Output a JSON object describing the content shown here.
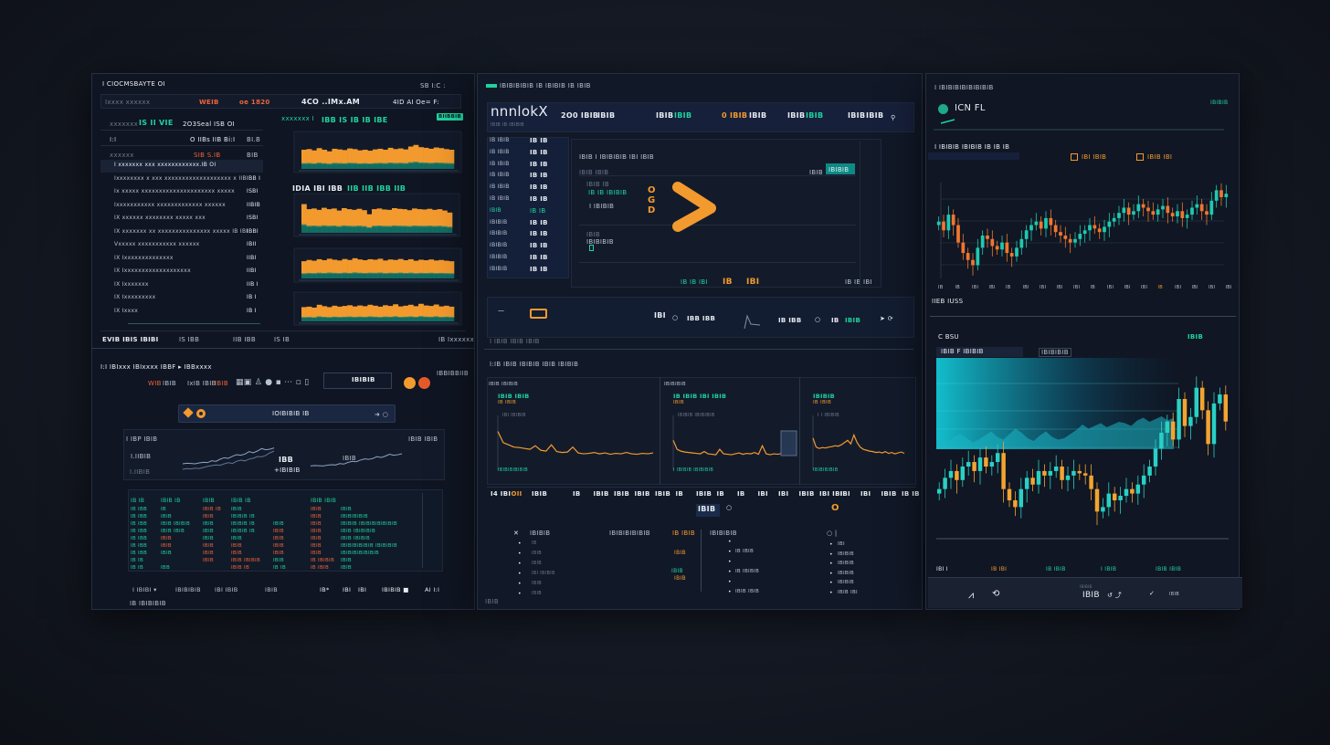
{
  "left_top": {
    "title": "I CIOCMSBAYTE  OI",
    "header_right": "SB  I:C  :",
    "toolbar": {
      "label": "Ixxxx xxxxxx",
      "a": "WEIB",
      "b": "oe 1820",
      "center": "4CO ..IMx.AM",
      "right": "4ID  AI  Oe= F:"
    },
    "summary": {
      "label": "xxxxxxx",
      "green": "IS II  VIE",
      "white": "2O3Seal  ISB OI"
    },
    "rows_head": [
      {
        "a": "I:I",
        "b": "O IIBs  IIB Bi:I",
        "c": "BI.B"
      },
      {
        "a": "xxxxxx",
        "b": "SIB  S.IB",
        "c": "BIB"
      }
    ],
    "list": [
      {
        "label": "I  xxxxxxx xxx xxxxxxxxxxxx.IB  OI",
        "value": ""
      },
      {
        "label": "Ixxxxxxxx x xxx xxxxxxxxxxxxxxxxxxx x IIB",
        "value": "IBB I"
      },
      {
        "label": "Ix xxxxx xxxxxxxxxxxxxxxxxxxxx xxxxx",
        "value": "ISBI"
      },
      {
        "label": "Ixxxxxxxxxxx xxxxxxxxxxxxx xxxxxx",
        "value": "IIBIB"
      },
      {
        "label": "IX xxxxxx xxxxxxxx xxxxx xxx",
        "value": "ISBI"
      },
      {
        "label": "IX xxxxxxx xx xxxxxxxxxxxxxxx xxxxx  IB IBI",
        "value": "IBBI"
      },
      {
        "label": "Vxxxxx xxxxxxxxxxx xxxxxx",
        "value": "IBII"
      },
      {
        "label": "IX Ixxxxxxxxxxxxxx",
        "value": "IIBI"
      },
      {
        "label": "IX Ixxxxxxxxxxxxxxxxxxx",
        "value": "IIBI"
      },
      {
        "label": "IX Ixxxxxxx",
        "value": "IIB I"
      },
      {
        "label": "IX Ixxxxxxxxx",
        "value": "IB I"
      },
      {
        "label": "IX Ixxxx",
        "value": "IB I"
      }
    ],
    "chart_labels": [
      {
        "a": "xxxxxxx I",
        "b": "IBB IS IB IB IBE",
        "badge": "BIIBBIB"
      },
      {
        "a": "IDIA  IBI IBB",
        "b": "IIB  IIB IBB IIB"
      }
    ],
    "waves": [
      [
        60,
        62,
        58,
        65,
        60,
        55,
        63,
        61,
        59,
        64,
        62,
        58,
        60,
        57,
        61,
        63,
        60,
        66,
        62,
        64,
        61,
        70,
        75,
        68,
        66,
        63,
        67,
        65,
        62,
        60
      ],
      [
        85,
        70,
        72,
        68,
        74,
        70,
        72,
        66,
        73,
        70,
        68,
        71,
        67,
        55,
        70,
        72,
        69,
        68,
        73,
        71,
        70,
        67,
        72,
        70,
        69,
        71,
        68,
        70,
        66,
        60
      ],
      [
        70,
        75,
        72,
        78,
        74,
        80,
        76,
        73,
        79,
        75,
        82,
        77,
        74,
        78,
        76,
        80,
        73,
        77,
        75,
        79,
        74,
        78,
        72,
        76,
        74,
        77,
        73,
        75,
        72,
        70
      ],
      [
        60,
        62,
        58,
        70,
        64,
        60,
        66,
        62,
        65,
        68,
        63,
        67,
        64,
        70,
        66,
        62,
        68,
        65,
        72,
        63,
        66,
        70,
        64,
        74,
        67,
        65,
        71,
        63,
        66,
        62
      ]
    ],
    "footer": {
      "a": "EVIB IBIS IBIBI",
      "b": "IS IBB",
      "c": "IIB  IBB",
      "d": "IS IB",
      "e": "IB Ixxxxxx"
    }
  },
  "left_bottom": {
    "title": "I:I IBIxxx IBIxxxx IBBF  ▸ IBBxxxx",
    "header_right": "IBBIBBIIB",
    "toolbar": [
      "WIB",
      "IBIB",
      "IxIB IBIB",
      "IBIB",
      "IBIB"
    ],
    "ticker": "IBIBIB",
    "search_value": "IOIBIBIB IB",
    "chart": {
      "title": "I IBP IBIB",
      "right": "IBIB IBIB",
      "y1": "I.IIBIB",
      "y2": "I.IIBIB",
      "mid": "IBB",
      "mid2": "+IBIBIB",
      "r1": "IBIB",
      "series_a": [
        30,
        32,
        31,
        30,
        33,
        35,
        34,
        40,
        38,
        45,
        50,
        48,
        55,
        60,
        58,
        62,
        70,
        66,
        72,
        80,
        76,
        78,
        82
      ],
      "series_b": [
        10,
        12,
        11,
        13,
        12,
        15,
        18,
        20,
        22,
        21,
        25,
        28,
        26,
        32,
        35,
        33,
        38,
        40,
        45,
        44,
        48,
        55,
        60
      ]
    },
    "table": {
      "headers": [
        "IB IB",
        "IBIB IB",
        "IBIB",
        "IBIB IB",
        "",
        "IBIB  IBIB",
        ""
      ],
      "rows": [
        [
          [
            "IB IBB",
            "tl"
          ],
          [
            "IB",
            "tl"
          ],
          [
            "IBIB IB",
            "rd"
          ],
          [
            "IBIB",
            "tl"
          ],
          [
            "",
            ""
          ],
          [
            "IBIB",
            "rd"
          ],
          [
            "IBIB",
            "tl"
          ]
        ],
        [
          [
            "IB IBB",
            "tl"
          ],
          [
            "IBIB",
            "tl"
          ],
          [
            "IBIB",
            "rd"
          ],
          [
            "IBIBIB IB",
            "tl"
          ],
          [
            "",
            ""
          ],
          [
            "IBIB",
            "rd"
          ],
          [
            "IBIBIBIBIB",
            "tl"
          ]
        ],
        [
          [
            "IB IBB",
            "tl"
          ],
          [
            "IBIB IBIBIB",
            "tl"
          ],
          [
            "IBIB",
            "tl"
          ],
          [
            "IBIBIB IB",
            "tl"
          ],
          [
            "IBIB",
            "tl"
          ],
          [
            "IBIB",
            "rd"
          ],
          [
            "IBIBIB IBIBIBIBIBIBIB",
            "tl"
          ]
        ],
        [
          [
            "IB IBB",
            "tl"
          ],
          [
            "IBIB IBIB",
            "tl"
          ],
          [
            "IBIB",
            "tl"
          ],
          [
            "IBIBIB IB",
            "tl"
          ],
          [
            "IBIB",
            "rd"
          ],
          [
            "IBIB",
            "rd"
          ],
          [
            "IBIB IBIBIBIB",
            "tl"
          ]
        ],
        [
          [
            "IB IBB",
            "tl"
          ],
          [
            "IBIB",
            "rd"
          ],
          [
            "IBIB",
            "tl"
          ],
          [
            "IBIB",
            "tl"
          ],
          [
            "IBIB",
            "rd"
          ],
          [
            "IBIB",
            "rd"
          ],
          [
            "IBIB IBIBIB",
            "tl"
          ]
        ],
        [
          [
            "IB IBB",
            "tl"
          ],
          [
            "IBIB",
            "rd"
          ],
          [
            "IBIB",
            "rd"
          ],
          [
            "IBIB",
            "rd"
          ],
          [
            "IBIB",
            "rd"
          ],
          [
            "IBIB",
            "rd"
          ],
          [
            "IBIBIBIBIBIB IBIBIBIB",
            "tl"
          ]
        ],
        [
          [
            "IB IBB",
            "tl"
          ],
          [
            "IBIB",
            "tl"
          ],
          [
            "IBIB",
            "rd"
          ],
          [
            "IBIB",
            "rd"
          ],
          [
            "IBIB",
            "rd"
          ],
          [
            "IBIB",
            "rd"
          ],
          [
            "IBIBIBIBIBIBIB",
            "tl"
          ]
        ],
        [
          [
            "IB IB",
            "tl"
          ],
          [
            "",
            ""
          ],
          [
            "IBIB",
            "rd"
          ],
          [
            "IBIB IBIBIB",
            "rd"
          ],
          [
            "IBIB",
            "tl"
          ],
          [
            "IB IBIBIB",
            "rd"
          ],
          [
            "IBIB",
            "tl"
          ]
        ],
        [
          [
            "IB IB",
            "tl"
          ],
          [
            "IBB",
            "tl"
          ],
          [
            "",
            ""
          ],
          [
            "IBIB IB",
            "rd"
          ],
          [
            "IB IB",
            "tl"
          ],
          [
            "IB IBIB",
            "rd"
          ],
          [
            "IBIB",
            "tl"
          ]
        ]
      ]
    },
    "bottom": [
      "I  IBIBI ▾",
      "IBIBIBIB",
      "IBI IBIB",
      "IBIB",
      "IB*",
      "IBI",
      "IBI",
      "IBIBIB  ■",
      "AI I:I"
    ],
    "footer": "IB IBIBIBIB"
  },
  "middle_top": {
    "header": "IBIBIBIBIB IB IBIBIB IB IBIB",
    "brand": "nnnlokX",
    "brand_sub": "IBIB IB IBIBIB",
    "stats": [
      {
        "a": "2O0 IBIB",
        "b": "IBIB",
        "bc": "wh"
      },
      {
        "a": "IBIB",
        "b": "IBIB",
        "bc": "tl"
      },
      {
        "a": "0 IBIB",
        "b": "IBIB",
        "bc": "wh"
      },
      {
        "a": "IBIB",
        "b": "IBIB",
        "bc": "tl"
      },
      {
        "a": "IBIB",
        "b": "IBIB",
        "bc": "wh"
      }
    ],
    "side": [
      [
        "IB IBIB",
        "IB IB"
      ],
      [
        "IB IBIB",
        "IB IB"
      ],
      [
        "IB IBIB",
        "IB IB"
      ],
      [
        "IB IBIB",
        "IB IB"
      ],
      [
        "IB IBIB",
        "IB IB"
      ],
      [
        "IB IBIB",
        "IB IB"
      ],
      [
        "IBIB",
        "IB IB"
      ],
      [
        "IBIBIB",
        "IB IB"
      ],
      [
        "IBIBIB",
        "IB IB"
      ],
      [
        "IBIBIB",
        "IB IB"
      ],
      [
        "IBIBIB",
        "IB IB"
      ],
      [
        "IBIBIB",
        "IB IB"
      ]
    ],
    "main": {
      "title": "IBIB I IBIBIBIB   IBI IBIB",
      "subtitle": "IBIB IBIB",
      "tab_a": "IBIB",
      "tab_b": "IBIBIB",
      "label1": "IBIB IB",
      "label2": "IB  IB  IBIBIB",
      "label3": "I IBIBIB",
      "label4": "IBIB",
      "label5": "IBIBIBIB",
      "bottom": [
        "IBI IBIB",
        "IB IB",
        "IBIB",
        "IBIB"
      ]
    },
    "play_badges": [
      "IB IB IBI",
      "IB",
      "IBI"
    ],
    "play_right": "IB IB IBI",
    "bar": {
      "v1": "IBI",
      "v2": "IBB  IBB",
      "v3": "IB IBB",
      "v4": "IB",
      "v5": "IBIB"
    },
    "footer": "I IBIB IBIB IBIB"
  },
  "middle_bottom": {
    "header": "I:IB IBIB IBIBIB IBIB IBIBIB",
    "charts": [
      {
        "title": "IBIB IBIBIB",
        "badge": "IBIB IBIB",
        "tag": "IB IBIB",
        "tag2": "IBI  IBIBIB",
        "legend": "IBIBIBIBIBIB",
        "series": [
          80,
          55,
          50,
          45,
          44,
          42,
          40,
          48,
          38,
          36,
          50,
          35,
          33,
          34,
          45,
          32,
          30,
          31,
          33,
          30,
          32,
          29,
          31,
          30,
          33,
          30,
          29,
          31,
          30,
          32
        ]
      },
      {
        "title": "IBIBIBIB",
        "badge": "IB IBIB  IBI IBIB",
        "tag": "IBIB",
        "tag2": "IBIBIB IBIBIBIB",
        "legend": "I IBIBIB IBIBIBIB",
        "series": [
          60,
          40,
          36,
          34,
          33,
          32,
          31,
          30,
          35,
          30,
          29,
          28,
          40,
          30,
          29,
          28,
          30,
          32,
          29,
          31,
          30,
          33,
          29,
          48,
          30,
          28,
          30,
          29,
          31,
          28
        ]
      },
      {
        "title": "",
        "badge": "IBIBIB",
        "tag": "IB IBIB",
        "tag2": "I I IBIBIB",
        "legend": "IBIBIBIBIB",
        "series": [
          65,
          45,
          42,
          44,
          43,
          45,
          46,
          48,
          47,
          50,
          55,
          60,
          52,
          72,
          55,
          45,
          40,
          38,
          36,
          35,
          33,
          34,
          32,
          35,
          31,
          33,
          30,
          32,
          34,
          31
        ]
      }
    ],
    "ticks": [
      "I4 IBI",
      "OII",
      "IBIB",
      "",
      "IB",
      "IBIB",
      "IBIB",
      "IBIB",
      "IBIB",
      "IB",
      "IBIB",
      "IB",
      "IB",
      "IBI",
      "IBI",
      "IBIB",
      "IBI IBI",
      "IBI",
      "IBI",
      "IBIB",
      "IB IB"
    ],
    "center": "IBIB",
    "list_a": {
      "title": "IBIBIB",
      "right": "IBIBIBIBIBIB",
      "right_tag": "IB IBIB",
      "items": [
        "IB",
        "IBIB",
        "IBIB",
        "IBI IBIBIB",
        "IBIB",
        "IBIB"
      ]
    },
    "list_b": {
      "title": "IBIBIBIB",
      "items": [
        "",
        "IB IBIB",
        "",
        "IB IBIBIB",
        "",
        "IBIB IBIB"
      ]
    },
    "list_c": {
      "items": [
        "IBI",
        "IBIBIB",
        "IBIBIB",
        "IBIBIB",
        "IBIBIB",
        "IBIB IBI"
      ]
    },
    "footer": "IBIB"
  },
  "right": {
    "header": "I  IBIBIBIBIBIBIBIB",
    "ticker": "ICN FL",
    "ticker_badge": "IBIBIB",
    "chart_title": "I IBIBIB IBIBIB IB  IB IB",
    "legend": [
      {
        "label": "IBI  IBIB",
        "color": "#f39a2e"
      },
      {
        "label": "IBIB IBI",
        "color": "#f39a2e"
      }
    ],
    "closes": [
      60,
      55,
      64,
      58,
      48,
      42,
      38,
      35,
      45,
      52,
      50,
      46,
      44,
      48,
      42,
      40,
      45,
      50,
      55,
      58,
      60,
      56,
      62,
      58,
      54,
      52,
      50,
      48,
      50,
      53,
      55,
      58,
      56,
      54,
      57,
      60,
      62,
      65,
      68,
      64,
      66,
      70,
      68,
      66,
      64,
      67,
      69,
      65,
      63,
      66,
      62,
      64,
      68,
      70,
      66,
      64,
      72,
      78,
      74,
      76
    ],
    "x_ticks": [
      "IB",
      "IB",
      "IBI",
      "IBI",
      "IB",
      "IBI",
      "IBI",
      "IBI",
      "IBI",
      "IB",
      "IBI",
      "IBI",
      "IBI",
      "IB",
      "IBI",
      "IBI",
      "IBI",
      "IBI"
    ],
    "caption": "IIEB IUSS",
    "section2_title": "C BSU",
    "section2_badge": "IBIB",
    "tab_a": "IBIB F IBIBIB",
    "tab_b": "IBIBIBIB",
    "area": [
      62,
      63,
      61,
      64,
      66,
      63,
      60,
      62,
      65,
      68,
      64,
      62,
      66,
      70,
      67,
      63,
      61,
      65,
      68,
      64,
      62,
      63,
      66,
      69,
      73,
      70,
      72,
      74,
      71,
      73,
      75,
      74,
      72,
      76,
      78,
      75,
      77,
      79,
      76,
      78
    ],
    "closes2": [
      30,
      35,
      38,
      34,
      40,
      42,
      38,
      44,
      40,
      42,
      46,
      30,
      25,
      22,
      30,
      35,
      32,
      38,
      36,
      38,
      40,
      34,
      36,
      38,
      37,
      36,
      30,
      20,
      22,
      28,
      25,
      27,
      30,
      28,
      32,
      36,
      40,
      48,
      55,
      60,
      52,
      70,
      58,
      62,
      75,
      65,
      50,
      68,
      72,
      60
    ],
    "legend2": [
      [
        "IBI I",
        "wh"
      ],
      [
        "IB IBI",
        "or"
      ],
      [
        "IB IBIB",
        "tl"
      ],
      [
        "I IBIB",
        "tl"
      ],
      [
        "IBIB IBIB",
        "tl"
      ]
    ],
    "footer_label": "IBIB",
    "footer_sub": "IBIBIB",
    "footer_text": "IBIB"
  },
  "colors": {
    "orange": "#f39a2e",
    "teal": "#1fd3a0",
    "cyan": "#19c8d8",
    "red": "#f0643a",
    "panel": "#0f1522"
  }
}
